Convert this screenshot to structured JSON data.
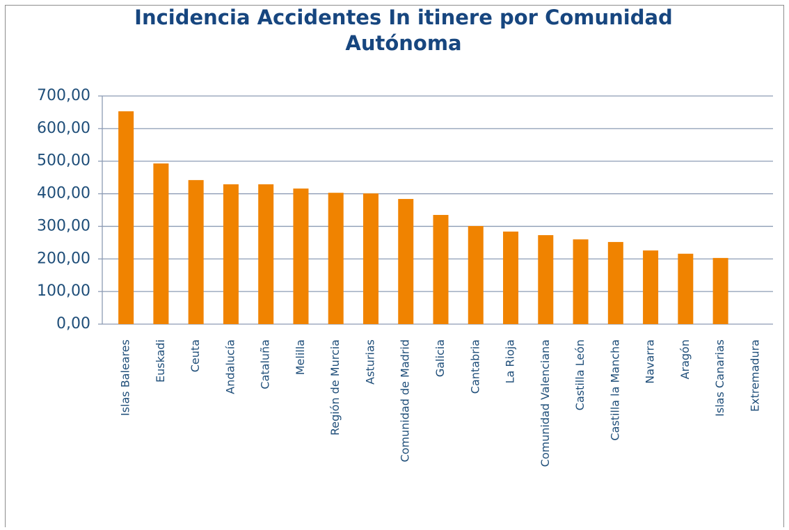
{
  "chart_data": {
    "type": "bar",
    "title": "Incidencia Accidentes In itinere por Comunidad Autónoma",
    "categories": [
      "Islas Baleares",
      "Euskadi",
      "Ceuta",
      "Andalucía",
      "Cataluña",
      "Melilla",
      "Región de Murcia",
      "Asturias",
      "Comunidad de Madrid",
      "Galicia",
      "Cantabria",
      "La Rioja",
      "Comunidad Valenciana",
      "Castilla León",
      "Castilla la Mancha",
      "Navarra",
      "Aragón",
      "Islas Canarias",
      "Extremadura"
    ],
    "values": [
      653,
      493,
      442,
      429,
      429,
      416,
      403,
      401,
      384,
      335,
      301,
      284,
      273,
      260,
      252,
      226,
      216,
      203,
      0
    ],
    "color": "#f08300",
    "ylim": [
      0,
      700
    ],
    "yticks": [
      {
        "value": 0,
        "label": "0,00"
      },
      {
        "value": 100,
        "label": "100,00"
      },
      {
        "value": 200,
        "label": "200,00"
      },
      {
        "value": 300,
        "label": "300,00"
      },
      {
        "value": 400,
        "label": "400,00"
      },
      {
        "value": 500,
        "label": "500,00"
      },
      {
        "value": 600,
        "label": "600,00"
      },
      {
        "value": 700,
        "label": "700,00"
      }
    ],
    "grid": true
  }
}
